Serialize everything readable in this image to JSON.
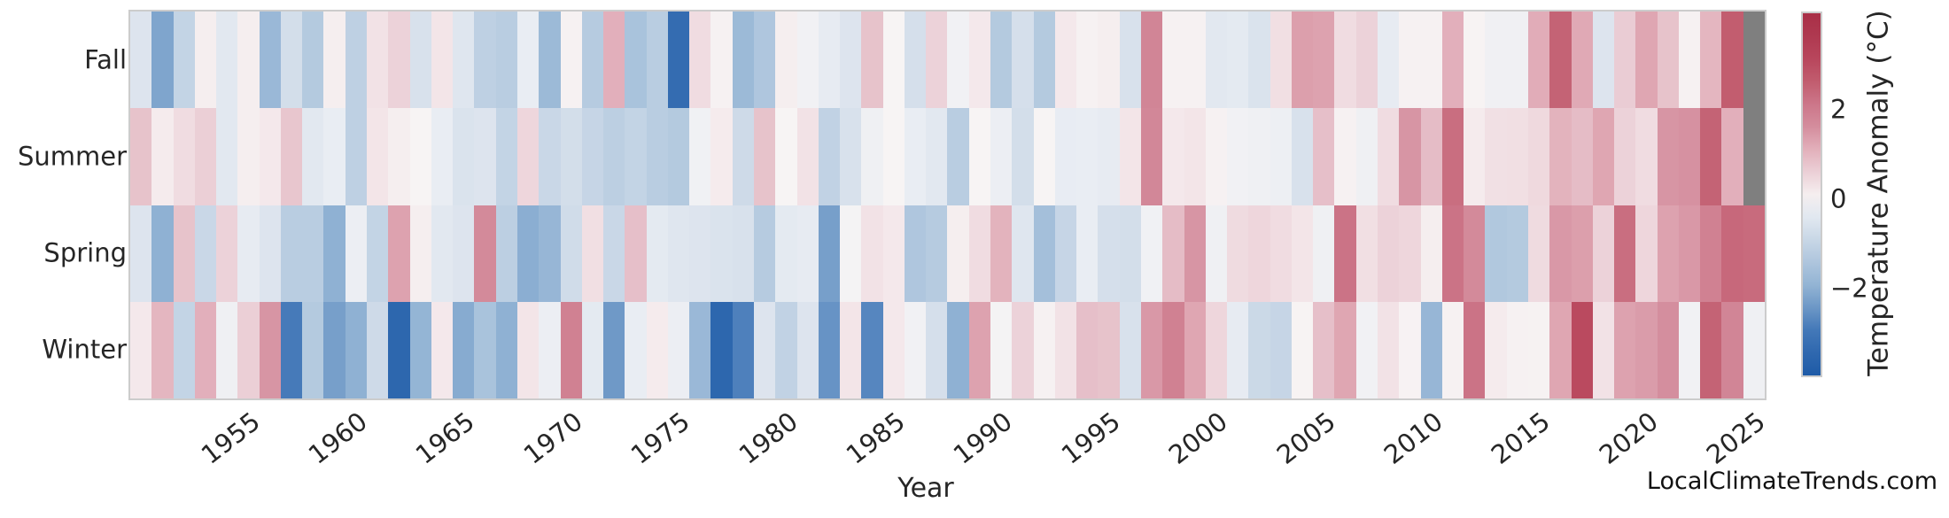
{
  "watermark": "LocalClimateTrends.com",
  "chart_data": {
    "type": "heatmap",
    "title": "",
    "xlabel": "Year",
    "ylabel": "",
    "x": [
      1950,
      1951,
      1952,
      1953,
      1954,
      1955,
      1956,
      1957,
      1958,
      1959,
      1960,
      1961,
      1962,
      1963,
      1964,
      1965,
      1966,
      1967,
      1968,
      1969,
      1970,
      1971,
      1972,
      1973,
      1974,
      1975,
      1976,
      1977,
      1978,
      1979,
      1980,
      1981,
      1982,
      1983,
      1984,
      1985,
      1986,
      1987,
      1988,
      1989,
      1990,
      1991,
      1992,
      1993,
      1994,
      1995,
      1996,
      1997,
      1998,
      1999,
      2000,
      2001,
      2002,
      2003,
      2004,
      2005,
      2006,
      2007,
      2008,
      2009,
      2010,
      2011,
      2012,
      2013,
      2014,
      2015,
      2016,
      2017,
      2018,
      2019,
      2020,
      2021,
      2022,
      2023,
      2024,
      2025
    ],
    "x_tick_labels": [
      "1955",
      "1960",
      "1965",
      "1970",
      "1975",
      "1980",
      "1985",
      "1990",
      "1995",
      "2000",
      "2005",
      "2010",
      "2015",
      "2020",
      "2025"
    ],
    "x_tick_years": [
      1955,
      1960,
      1965,
      1970,
      1975,
      1980,
      1985,
      1990,
      1995,
      2000,
      2005,
      2010,
      2015,
      2020,
      2025
    ],
    "rows": [
      {
        "label": "Fall",
        "values": [
          -0.5,
          -2.2,
          -1.0,
          0.1,
          -0.4,
          0.1,
          -1.8,
          -0.7,
          -1.3,
          0.1,
          -1.1,
          0.3,
          0.55,
          -0.6,
          0.25,
          -0.45,
          -1.1,
          -1.2,
          -0.25,
          -1.75,
          0.05,
          -1.25,
          1.1,
          -1.5,
          -1.2,
          -3.3,
          0.4,
          0.05,
          -1.75,
          -1.4,
          0.1,
          -0.1,
          -0.3,
          -0.5,
          0.8,
          0.0,
          -0.65,
          0.55,
          -0.1,
          0.2,
          -1.3,
          -0.65,
          -1.3,
          0.2,
          0.05,
          0.1,
          -0.6,
          1.8,
          0.05,
          0.05,
          -0.4,
          -0.35,
          -0.55,
          0.35,
          1.35,
          1.3,
          0.4,
          0.55,
          -0.3,
          0.05,
          0.05,
          1.1,
          0.02,
          -0.13,
          -0.13,
          1.15,
          2.5,
          1.2,
          -0.5,
          0.65,
          1.25,
          0.8,
          0.05,
          1.0,
          2.6,
          null
        ]
      },
      {
        "label": "Summer",
        "values": [
          0.8,
          0.15,
          0.4,
          0.6,
          -0.4,
          0.1,
          0.2,
          0.75,
          -0.4,
          -0.25,
          -1.1,
          0.25,
          0.1,
          0.0,
          -0.25,
          -0.55,
          -0.5,
          -1.0,
          0.5,
          -0.9,
          -0.7,
          -0.95,
          -1.15,
          -1.0,
          -1.2,
          -1.3,
          -0.12,
          0.15,
          -0.8,
          0.8,
          0.0,
          0.3,
          -1.05,
          -0.6,
          -0.15,
          0.0,
          -0.25,
          -0.4,
          -1.2,
          0.0,
          -0.2,
          -0.7,
          0.0,
          -0.27,
          -0.25,
          -0.3,
          0.25,
          1.75,
          0.2,
          0.25,
          0.05,
          -0.1,
          -0.15,
          -0.18,
          -0.6,
          0.85,
          0.05,
          -0.15,
          0.4,
          1.5,
          0.9,
          2.3,
          0.15,
          0.33,
          0.35,
          0.45,
          1.05,
          0.9,
          1.25,
          0.55,
          0.4,
          1.5,
          1.55,
          2.5,
          1.1,
          null
        ]
      },
      {
        "label": "Spring",
        "values": [
          -0.5,
          -2.0,
          0.8,
          -0.9,
          0.55,
          -0.3,
          -0.5,
          -1.2,
          -1.2,
          -2.0,
          -0.2,
          -1.0,
          1.3,
          0.1,
          -0.4,
          -0.5,
          1.7,
          -1.15,
          -2.05,
          -1.85,
          -0.75,
          0.35,
          -0.9,
          0.85,
          -0.35,
          -0.45,
          -0.5,
          -0.55,
          -0.6,
          -1.25,
          -0.35,
          -0.3,
          -2.3,
          -0.05,
          0.3,
          0.2,
          -1.4,
          -1.25,
          0.1,
          0.4,
          1.05,
          -0.45,
          -1.6,
          -0.95,
          -0.25,
          -0.65,
          -0.7,
          -0.12,
          0.9,
          1.5,
          -0.15,
          0.42,
          0.5,
          0.4,
          0.25,
          -0.15,
          2.2,
          0.35,
          0.55,
          0.5,
          0.1,
          2.2,
          1.7,
          -1.35,
          -1.3,
          0.42,
          1.45,
          1.35,
          0.55,
          2.3,
          0.5,
          1.3,
          1.45,
          1.9,
          2.4,
          2.35
        ]
      },
      {
        "label": "Winter",
        "values": [
          0.2,
          1.0,
          -1.0,
          1.1,
          -0.15,
          0.6,
          1.5,
          -2.9,
          -1.3,
          -2.3,
          -2.0,
          -0.8,
          -3.5,
          -1.9,
          0.2,
          -2.1,
          -1.5,
          -2.0,
          0.25,
          -0.2,
          1.9,
          -0.35,
          -2.4,
          -0.25,
          0.15,
          -0.2,
          -1.8,
          -3.5,
          -2.8,
          -0.5,
          -1.05,
          -0.5,
          -2.5,
          0.25,
          -2.7,
          0.2,
          -0.1,
          -0.65,
          -2.0,
          1.3,
          -0.05,
          0.55,
          0.05,
          0.3,
          0.85,
          0.8,
          -0.6,
          1.45,
          1.9,
          1.25,
          0.5,
          -0.3,
          -0.85,
          -0.95,
          0.02,
          0.85,
          1.25,
          -0.1,
          0.3,
          0.03,
          -1.85,
          0.05,
          2.2,
          0.15,
          0.05,
          0.04,
          1.25,
          3.0,
          0.3,
          1.3,
          1.4,
          1.6,
          -0.1,
          2.5,
          1.8,
          -0.15
        ]
      }
    ],
    "colorbar": {
      "label": "Temperature Anomaly (°C)",
      "tick_values": [
        2,
        0,
        -2
      ],
      "tick_labels": [
        "2",
        "0",
        "−2"
      ],
      "vmin": -3.95,
      "vmax": 4.15
    },
    "palette_stops": [
      [
        -4.0,
        "#1c5aa6"
      ],
      [
        -3.0,
        "#3e74b6"
      ],
      [
        -2.0,
        "#8fb1d3"
      ],
      [
        -1.2,
        "#b9cde1"
      ],
      [
        -0.6,
        "#d8e1ec"
      ],
      [
        -0.25,
        "#e9edf3"
      ],
      [
        0.0,
        "#f7f4f4"
      ],
      [
        0.3,
        "#f2e2e6"
      ],
      [
        0.7,
        "#e9c9d1"
      ],
      [
        1.2,
        "#e0a9b5"
      ],
      [
        1.6,
        "#d48e9e"
      ],
      [
        2.2,
        "#cb7386"
      ],
      [
        2.6,
        "#c25d6f"
      ],
      [
        3.0,
        "#ba4a5f"
      ],
      [
        4.0,
        "#a92f47"
      ]
    ],
    "missing_color": "#7f7f7f",
    "grid": false,
    "legend_position": "right-colorbar"
  },
  "layout_note_colors": {
    "text": "#262626",
    "frame": "#cccccc",
    "background": "#ffffff"
  }
}
